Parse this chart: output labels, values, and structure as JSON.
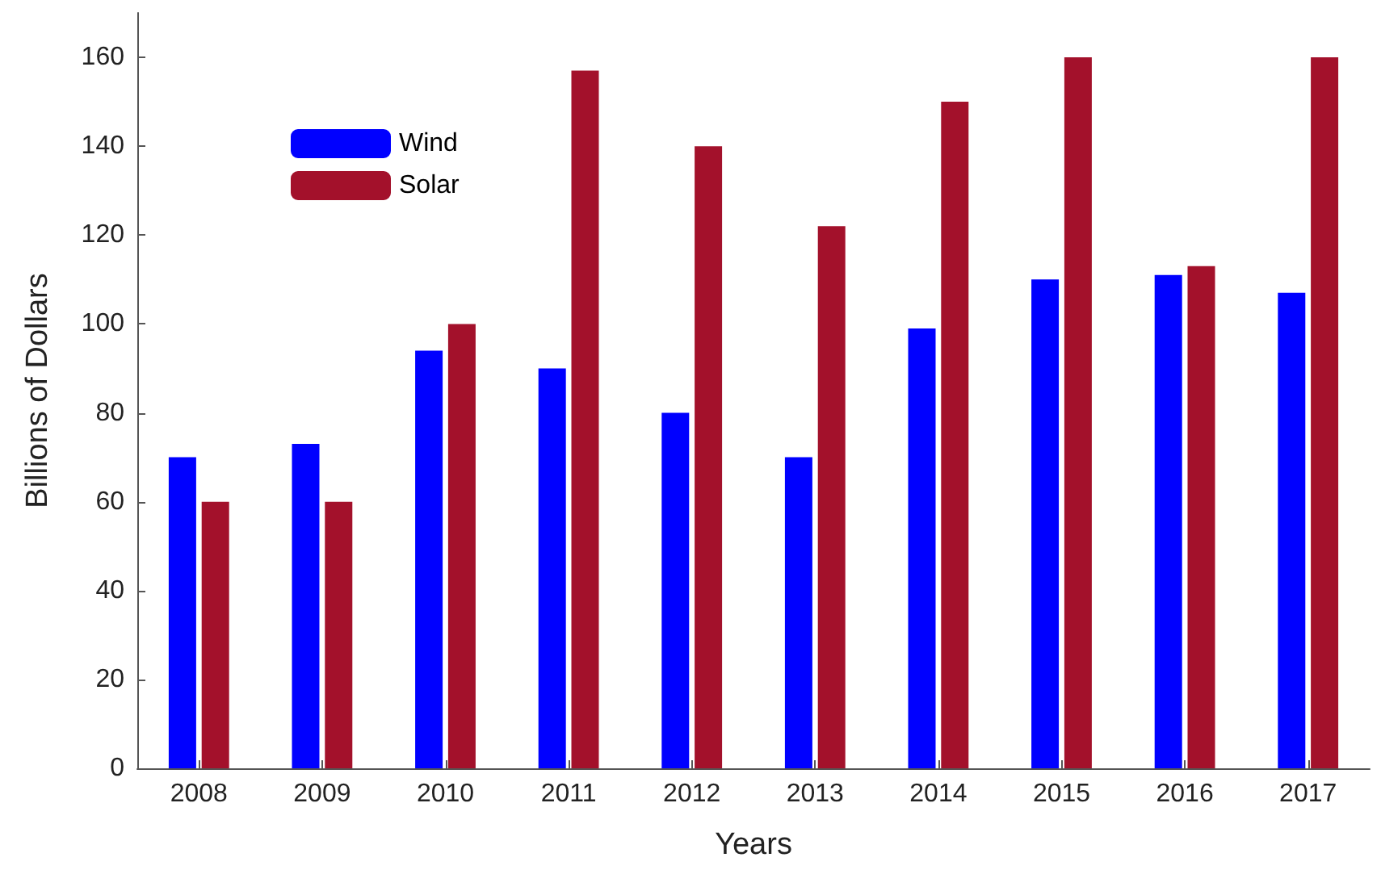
{
  "chart_data": {
    "type": "bar",
    "xlabel": "Years",
    "ylabel": "Billions of Dollars",
    "categories": [
      "2008",
      "2009",
      "2010",
      "2011",
      "2012",
      "2013",
      "2014",
      "2015",
      "2016",
      "2017"
    ],
    "series": [
      {
        "name": "Wind",
        "color": "#0000ff",
        "values": [
          70,
          73,
          94,
          90,
          80,
          70,
          99,
          110,
          111,
          107
        ]
      },
      {
        "name": "Solar",
        "color": "#a3112b",
        "values": [
          60,
          60,
          100,
          157,
          140,
          122,
          150,
          160,
          113,
          160
        ]
      }
    ],
    "ylim": [
      0,
      170
    ],
    "yticks": [
      0,
      20,
      40,
      60,
      80,
      100,
      120,
      140,
      160
    ],
    "grid": false,
    "legend": "top left"
  }
}
